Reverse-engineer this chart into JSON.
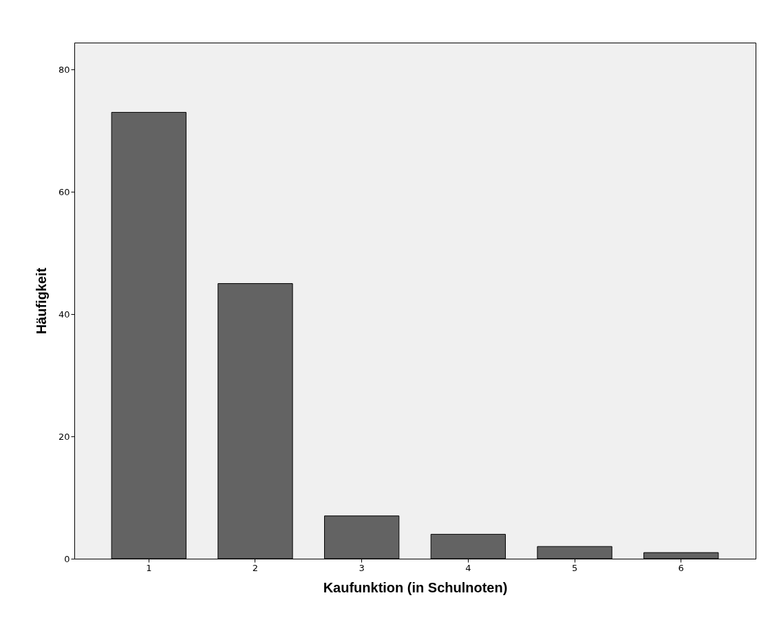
{
  "chart_data": {
    "type": "bar",
    "xlabel": "Kaufunktion (in Schulnoten)",
    "ylabel": "Häufigkeit",
    "categories": [
      "1",
      "2",
      "3",
      "4",
      "5",
      "6"
    ],
    "values": [
      73,
      45,
      7,
      4,
      2,
      1
    ],
    "color": "#636363",
    "ylim": [
      0,
      84.4
    ],
    "yticks": [
      0,
      20,
      40,
      60,
      80
    ],
    "grid": false
  }
}
